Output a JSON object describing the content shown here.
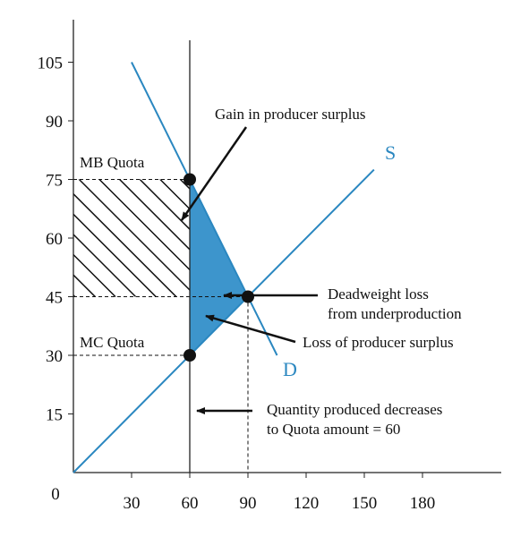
{
  "chart_data": {
    "type": "line",
    "title": "",
    "xlabel": "",
    "ylabel": "",
    "origin_label": "0",
    "x_ticks": [
      30,
      60,
      90,
      120,
      150,
      180
    ],
    "y_ticks": [
      15,
      30,
      45,
      60,
      75,
      90,
      105
    ],
    "series": [
      {
        "name": "S",
        "points": [
          [
            0,
            0
          ],
          [
            155,
            77.5
          ]
        ]
      },
      {
        "name": "D",
        "points": [
          [
            30,
            105
          ],
          [
            105,
            30
          ]
        ]
      }
    ],
    "quota_quantity": 60,
    "equilibrium": {
      "q": 90,
      "p": 45
    },
    "mb_quota_price": 75,
    "mc_quota_price": 30,
    "annotations": {
      "mb_quota": "MB Quota",
      "mc_quota": "MC Quota",
      "gain_ps": "Gain in producer surplus",
      "dwl_line1": "Deadweight loss",
      "dwl_line2": "from underproduction",
      "loss_ps": "Loss of producer surplus",
      "qty_line1": "Quantity produced decreases",
      "qty_line2": "to Quota amount = 60"
    },
    "colors": {
      "curve": "#2a87c0",
      "dwl_fill": "#3d95cc",
      "axis": "#222222",
      "hatch": "#111111"
    }
  }
}
